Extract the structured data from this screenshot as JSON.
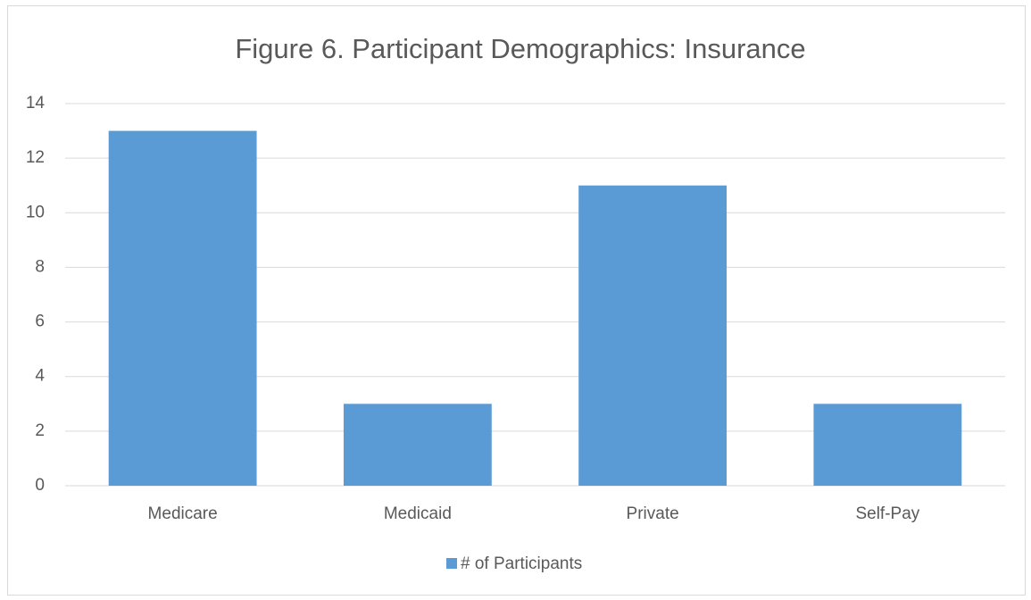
{
  "chart_data": {
    "type": "bar",
    "title": "Figure 6. Participant Demographics: Insurance",
    "categories": [
      "Medicare",
      "Medicaid",
      "Private",
      "Self-Pay"
    ],
    "series": [
      {
        "name": "# of Participants",
        "color": "#5b9bd5",
        "values": [
          13,
          3,
          11,
          3
        ]
      }
    ],
    "ylim": [
      0,
      14
    ],
    "yticks": [
      0,
      2,
      4,
      6,
      8,
      10,
      12,
      14
    ],
    "grid": true,
    "legend": "bottom"
  }
}
